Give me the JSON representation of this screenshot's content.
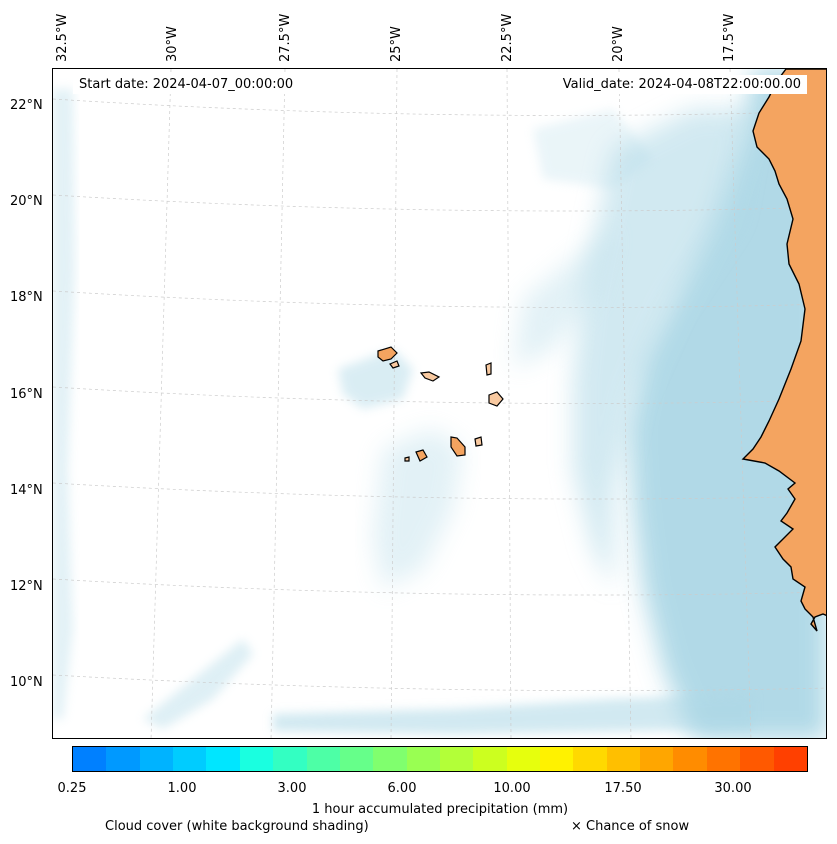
{
  "map": {
    "start_date": "Start date: 2024-04-07_00:00:00",
    "valid_date": "Valid_date: 2024-04-08T22:00:00.00",
    "longitude_labels": [
      "32.5°W",
      "30°W",
      "27.5°W",
      "25°W",
      "22.5°W",
      "20°W",
      "17.5°W"
    ],
    "latitude_labels": [
      "22°N",
      "20°N",
      "18°N",
      "16°N",
      "14°N",
      "12°N",
      "10°N"
    ],
    "colors": {
      "land": "#f4a460",
      "land_light": "#f8c9a0",
      "cloud": "#add8e6",
      "coastline": "#000000",
      "grid": "#cccccc"
    }
  },
  "legend": {
    "colorbar_colors": [
      "#0080ff",
      "#0099ff",
      "#00b3ff",
      "#00ccff",
      "#00e6ff",
      "#1affe0",
      "#33ffc2",
      "#4dffa6",
      "#66ff8a",
      "#80ff6e",
      "#99ff52",
      "#b3ff38",
      "#ccff1f",
      "#e6ff0d",
      "#fff200",
      "#ffd900",
      "#ffbf00",
      "#ffa600",
      "#ff8c00",
      "#ff7300",
      "#ff5900",
      "#ff4000"
    ],
    "ticks": [
      "0.25",
      "1.00",
      "3.00",
      "6.00",
      "10.00",
      "17.50",
      "30.00"
    ],
    "title": "1 hour accumulated precipitation (mm)",
    "cloud_cover": "Cloud cover (white background shading)",
    "snow": "× Chance of snow"
  }
}
